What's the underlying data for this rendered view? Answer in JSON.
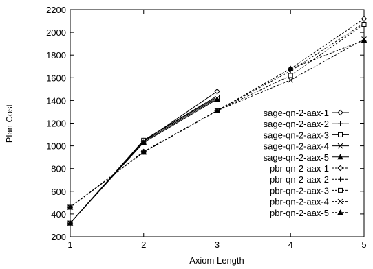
{
  "chart_data": {
    "type": "line",
    "title": "",
    "xlabel": "Axiom Length",
    "ylabel": "Plan Cost",
    "xlim": [
      1,
      5
    ],
    "ylim": [
      200,
      2200
    ],
    "x_ticks": [
      "1",
      "2",
      "3",
      "4",
      "5"
    ],
    "y_ticks": [
      "200",
      "400",
      "600",
      "800",
      "1000",
      "1200",
      "1400",
      "1600",
      "1800",
      "2000",
      "2200"
    ],
    "grid": false,
    "legend_position": "right-center",
    "series": [
      {
        "name": "sage-qn-2-aax-1",
        "style": "solid",
        "marker": "diamond",
        "x": [
          1,
          2,
          3
        ],
        "values": [
          320,
          1040,
          1480
        ]
      },
      {
        "name": "sage-qn-2-aax-2",
        "style": "solid",
        "marker": "plus",
        "x": [
          1,
          2,
          3
        ],
        "values": [
          320,
          1050,
          1440
        ]
      },
      {
        "name": "sage-qn-2-aax-3",
        "style": "solid",
        "marker": "square",
        "x": [
          1,
          2,
          3
        ],
        "values": [
          320,
          1050,
          1430
        ]
      },
      {
        "name": "sage-qn-2-aax-4",
        "style": "solid",
        "marker": "cross",
        "x": [
          1,
          2,
          3
        ],
        "values": [
          320,
          1040,
          1420
        ]
      },
      {
        "name": "sage-qn-2-aax-5",
        "style": "solid",
        "marker": "triangle",
        "x": [
          1,
          2,
          3
        ],
        "values": [
          320,
          1030,
          1410
        ]
      },
      {
        "name": "pbr-qn-2-aax-1",
        "style": "dashed",
        "marker": "diamond",
        "x": [
          1,
          2,
          3,
          4,
          5
        ],
        "values": [
          460,
          950,
          1310,
          1680,
          2120
        ]
      },
      {
        "name": "pbr-qn-2-aax-2",
        "style": "dashed",
        "marker": "plus",
        "x": [
          1,
          2,
          3,
          4,
          5
        ],
        "values": [
          460,
          945,
          1310,
          1660,
          2080
        ]
      },
      {
        "name": "pbr-qn-2-aax-3",
        "style": "dashed",
        "marker": "square",
        "x": [
          1,
          2,
          3,
          4,
          5
        ],
        "values": [
          460,
          945,
          1310,
          1620,
          2070
        ]
      },
      {
        "name": "pbr-qn-2-aax-4",
        "style": "dashed",
        "marker": "cross",
        "x": [
          1,
          2,
          3,
          4,
          5
        ],
        "values": [
          460,
          945,
          1310,
          1580,
          1940
        ]
      },
      {
        "name": "pbr-qn-2-aax-5",
        "style": "dashed",
        "marker": "triangle",
        "x": [
          1,
          2,
          3,
          4,
          5
        ],
        "values": [
          460,
          945,
          1310,
          1680,
          1930
        ]
      }
    ]
  }
}
